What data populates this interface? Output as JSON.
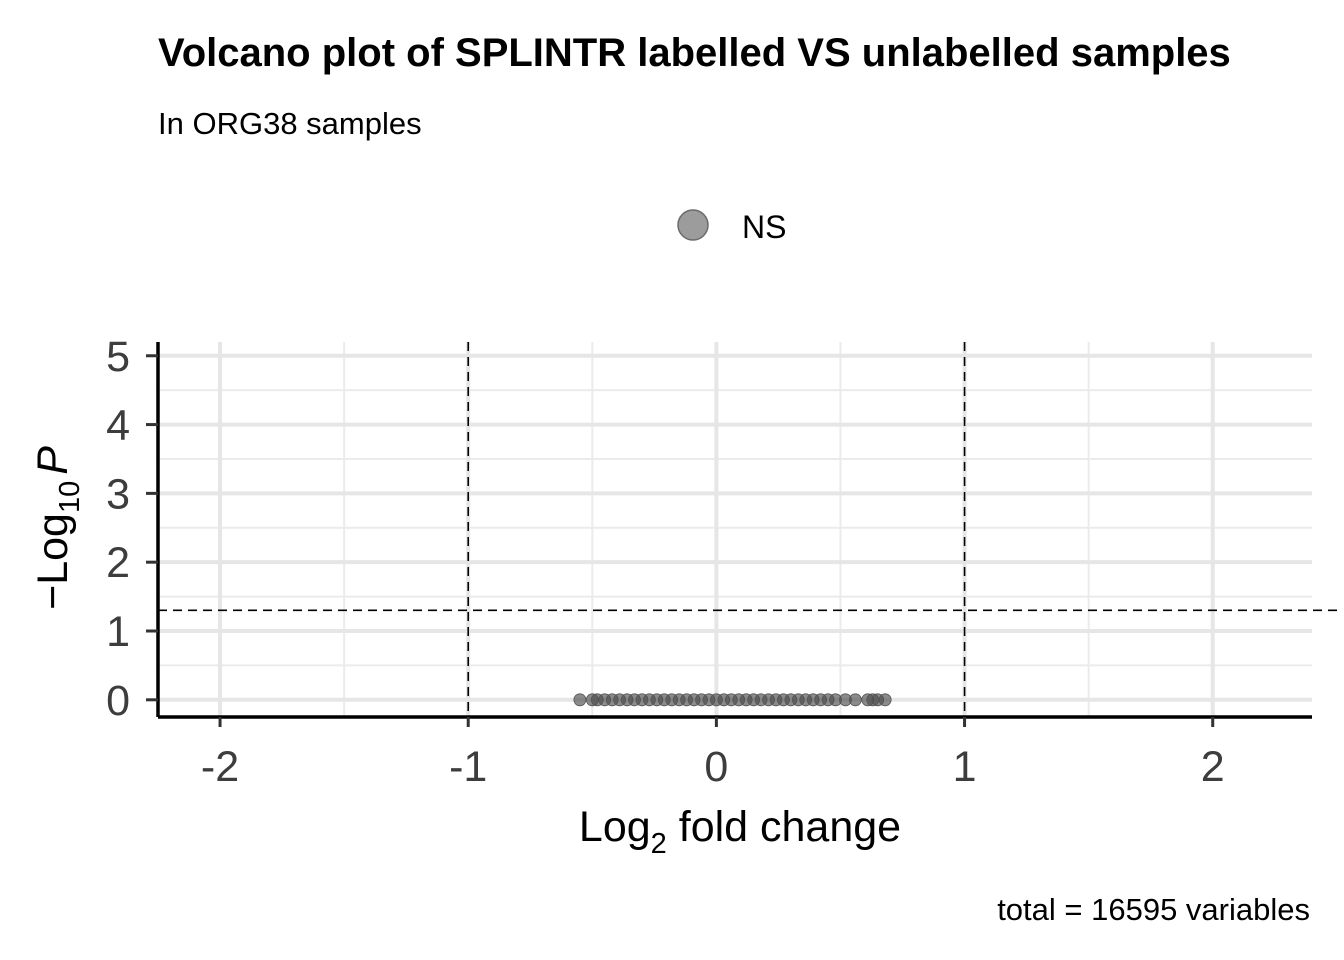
{
  "chart_data": {
    "type": "scatter",
    "title": "Volcano plot of SPLINTR labelled VS unlabelled samples",
    "subtitle": "In ORG38 samples",
    "legend": [
      {
        "name": "NS",
        "color": "#808080"
      }
    ],
    "legend_position": "top",
    "xlabel_base": "Log",
    "xlabel_sub": "2",
    "xlabel_rest": " fold change",
    "ylabel_prefix": "−Log",
    "ylabel_sub": "10",
    "ylabel_var": "P",
    "caption": "total = 16595 variables",
    "xlim": [
      -2.25,
      2.4
    ],
    "ylim": [
      -0.25,
      5.2
    ],
    "x_ticks": [
      {
        "value": -2,
        "label": "-2"
      },
      {
        "value": -1,
        "label": "-1"
      },
      {
        "value": 0,
        "label": "0"
      },
      {
        "value": 1,
        "label": "1"
      },
      {
        "value": 2,
        "label": "2"
      }
    ],
    "y_ticks": [
      {
        "value": 0,
        "label": "0"
      },
      {
        "value": 1,
        "label": "1"
      },
      {
        "value": 2,
        "label": "2"
      },
      {
        "value": 3,
        "label": "3"
      },
      {
        "value": 4,
        "label": "4"
      },
      {
        "value": 5,
        "label": "5"
      }
    ],
    "fc_cutoffs": [
      -1,
      1
    ],
    "p_cutoff_neglog10": 1.3,
    "grid": true,
    "point_color": "#4d4d4d",
    "points": [
      {
        "x": -0.55,
        "y": 0
      },
      {
        "x": -0.5,
        "y": 0
      },
      {
        "x": -0.48,
        "y": 0
      },
      {
        "x": -0.45,
        "y": 0
      },
      {
        "x": -0.42,
        "y": 0
      },
      {
        "x": -0.39,
        "y": 0
      },
      {
        "x": -0.36,
        "y": 0
      },
      {
        "x": -0.33,
        "y": 0
      },
      {
        "x": -0.3,
        "y": 0
      },
      {
        "x": -0.27,
        "y": 0
      },
      {
        "x": -0.24,
        "y": 0
      },
      {
        "x": -0.21,
        "y": 0
      },
      {
        "x": -0.18,
        "y": 0
      },
      {
        "x": -0.15,
        "y": 0
      },
      {
        "x": -0.12,
        "y": 0
      },
      {
        "x": -0.09,
        "y": 0
      },
      {
        "x": -0.06,
        "y": 0
      },
      {
        "x": -0.03,
        "y": 0
      },
      {
        "x": 0.0,
        "y": 0
      },
      {
        "x": 0.03,
        "y": 0
      },
      {
        "x": 0.06,
        "y": 0
      },
      {
        "x": 0.09,
        "y": 0
      },
      {
        "x": 0.12,
        "y": 0
      },
      {
        "x": 0.15,
        "y": 0
      },
      {
        "x": 0.18,
        "y": 0
      },
      {
        "x": 0.21,
        "y": 0
      },
      {
        "x": 0.24,
        "y": 0
      },
      {
        "x": 0.27,
        "y": 0
      },
      {
        "x": 0.3,
        "y": 0
      },
      {
        "x": 0.33,
        "y": 0
      },
      {
        "x": 0.36,
        "y": 0
      },
      {
        "x": 0.39,
        "y": 0
      },
      {
        "x": 0.42,
        "y": 0
      },
      {
        "x": 0.45,
        "y": 0
      },
      {
        "x": 0.48,
        "y": 0
      },
      {
        "x": 0.52,
        "y": 0
      },
      {
        "x": 0.56,
        "y": 0
      },
      {
        "x": 0.61,
        "y": 0
      },
      {
        "x": 0.63,
        "y": 0
      },
      {
        "x": 0.65,
        "y": 0
      },
      {
        "x": 0.68,
        "y": 0
      }
    ]
  }
}
